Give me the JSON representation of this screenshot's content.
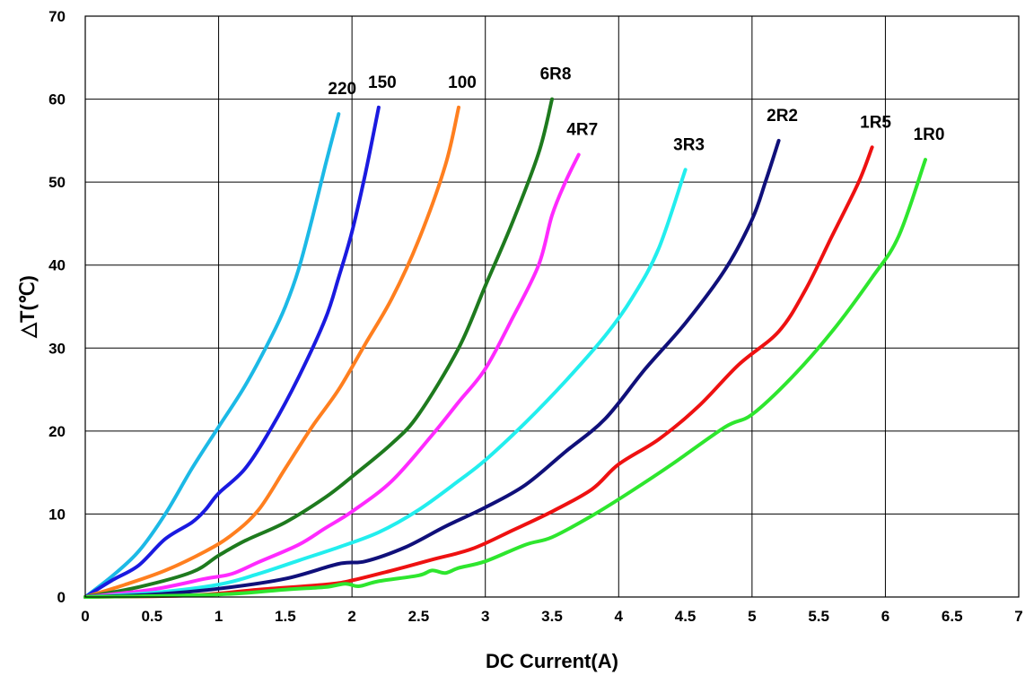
{
  "chart_data": {
    "type": "line",
    "title": "",
    "xlabel": "DC Current(A)",
    "ylabel": "△T(℃)",
    "xlim": [
      0,
      7
    ],
    "ylim": [
      0,
      70
    ],
    "x_ticks": [
      "0",
      "0.5",
      "1",
      "1.5",
      "2",
      "2.5",
      "3",
      "3.5",
      "4",
      "4.5",
      "5",
      "5.5",
      "6",
      "6.5",
      "7"
    ],
    "y_ticks": [
      "0",
      "10",
      "20",
      "30",
      "40",
      "50",
      "60",
      "70"
    ],
    "grid": true,
    "legend": "inline labels at curve ends",
    "series": [
      {
        "name": "220",
        "color": "#1cb9e6",
        "points": [
          [
            0,
            0
          ],
          [
            0.2,
            2.5
          ],
          [
            0.4,
            5.5
          ],
          [
            0.6,
            10
          ],
          [
            0.8,
            15.5
          ],
          [
            1,
            20.5
          ],
          [
            1.2,
            25.5
          ],
          [
            1.4,
            31.5
          ],
          [
            1.5,
            35
          ],
          [
            1.6,
            39.5
          ],
          [
            1.7,
            45.5
          ],
          [
            1.8,
            52
          ],
          [
            1.9,
            58.2
          ]
        ]
      },
      {
        "name": "150",
        "color": "#1a1ae0",
        "points": [
          [
            0,
            0
          ],
          [
            0.2,
            2
          ],
          [
            0.4,
            3.8
          ],
          [
            0.6,
            7
          ],
          [
            0.8,
            9
          ],
          [
            0.9,
            10.5
          ],
          [
            1,
            12.5
          ],
          [
            1.2,
            15.5
          ],
          [
            1.4,
            20.5
          ],
          [
            1.6,
            26.5
          ],
          [
            1.8,
            33.5
          ],
          [
            1.9,
            38.5
          ],
          [
            2,
            44
          ],
          [
            2.1,
            51
          ],
          [
            2.2,
            59
          ]
        ]
      },
      {
        "name": "100",
        "color": "#ff7f1f",
        "points": [
          [
            0,
            0
          ],
          [
            0.3,
            1.5
          ],
          [
            0.6,
            3.2
          ],
          [
            0.9,
            5.5
          ],
          [
            1.1,
            7.5
          ],
          [
            1.3,
            10.5
          ],
          [
            1.5,
            15.5
          ],
          [
            1.7,
            20.5
          ],
          [
            1.9,
            25
          ],
          [
            2.1,
            30.5
          ],
          [
            2.3,
            36
          ],
          [
            2.5,
            43
          ],
          [
            2.7,
            52
          ],
          [
            2.8,
            59
          ]
        ]
      },
      {
        "name": "6R8",
        "color": "#1e7a1e",
        "points": [
          [
            0,
            0
          ],
          [
            0.4,
            1.2
          ],
          [
            0.8,
            3
          ],
          [
            1.0,
            5
          ],
          [
            1.2,
            6.8
          ],
          [
            1.5,
            9
          ],
          [
            1.8,
            12
          ],
          [
            2.0,
            14.5
          ],
          [
            2.3,
            18.5
          ],
          [
            2.5,
            22
          ],
          [
            2.8,
            30
          ],
          [
            3.0,
            37.5
          ],
          [
            3.2,
            45
          ],
          [
            3.4,
            53.5
          ],
          [
            3.5,
            60
          ]
        ]
      },
      {
        "name": "4R7",
        "color": "#ff2aff",
        "points": [
          [
            0,
            0
          ],
          [
            0.5,
            0.9
          ],
          [
            0.9,
            2.2
          ],
          [
            1.1,
            2.8
          ],
          [
            1.3,
            4.2
          ],
          [
            1.6,
            6.3
          ],
          [
            1.8,
            8.3
          ],
          [
            2.0,
            10.3
          ],
          [
            2.3,
            14
          ],
          [
            2.6,
            19.5
          ],
          [
            2.8,
            23.5
          ],
          [
            3.0,
            27.5
          ],
          [
            3.2,
            33.5
          ],
          [
            3.4,
            40
          ],
          [
            3.5,
            46
          ],
          [
            3.6,
            50
          ],
          [
            3.7,
            53.3
          ]
        ]
      },
      {
        "name": "3R3",
        "color": "#22eeee",
        "points": [
          [
            0,
            0
          ],
          [
            0.5,
            0.5
          ],
          [
            1.0,
            1.5
          ],
          [
            1.3,
            2.8
          ],
          [
            1.6,
            4.4
          ],
          [
            1.9,
            6
          ],
          [
            2.2,
            7.8
          ],
          [
            2.5,
            10.5
          ],
          [
            2.8,
            14
          ],
          [
            3.0,
            16.5
          ],
          [
            3.3,
            21
          ],
          [
            3.6,
            26
          ],
          [
            3.9,
            31.5
          ],
          [
            4.1,
            36
          ],
          [
            4.3,
            42
          ],
          [
            4.5,
            51.5
          ]
        ]
      },
      {
        "name": "2R2",
        "color": "#10107a",
        "points": [
          [
            0,
            0
          ],
          [
            0.5,
            0.3
          ],
          [
            1.0,
            1
          ],
          [
            1.5,
            2.2
          ],
          [
            1.9,
            4
          ],
          [
            2.1,
            4.3
          ],
          [
            2.4,
            6
          ],
          [
            2.7,
            8.5
          ],
          [
            3.0,
            10.8
          ],
          [
            3.3,
            13.5
          ],
          [
            3.6,
            17.5
          ],
          [
            3.9,
            21.5
          ],
          [
            4.2,
            27.5
          ],
          [
            4.5,
            33
          ],
          [
            4.8,
            39.5
          ],
          [
            5.0,
            45.5
          ],
          [
            5.1,
            50
          ],
          [
            5.2,
            55
          ]
        ]
      },
      {
        "name": "1R5",
        "color": "#ee1111",
        "points": [
          [
            0,
            0
          ],
          [
            0.8,
            0.2
          ],
          [
            1.3,
            0.9
          ],
          [
            1.8,
            1.5
          ],
          [
            2.0,
            2
          ],
          [
            2.3,
            3.2
          ],
          [
            2.6,
            4.5
          ],
          [
            2.9,
            5.8
          ],
          [
            3.2,
            8
          ],
          [
            3.5,
            10.3
          ],
          [
            3.8,
            13
          ],
          [
            4.0,
            16
          ],
          [
            4.3,
            19
          ],
          [
            4.6,
            23
          ],
          [
            4.9,
            28
          ],
          [
            5.2,
            32
          ],
          [
            5.4,
            37
          ],
          [
            5.6,
            43.5
          ],
          [
            5.8,
            50
          ],
          [
            5.9,
            54.2
          ]
        ]
      },
      {
        "name": "1R0",
        "color": "#2ee62e",
        "points": [
          [
            0,
            0
          ],
          [
            1.0,
            0.3
          ],
          [
            1.5,
            0.9
          ],
          [
            1.8,
            1.2
          ],
          [
            1.95,
            1.6
          ],
          [
            2.05,
            1.3
          ],
          [
            2.2,
            1.9
          ],
          [
            2.5,
            2.6
          ],
          [
            2.6,
            3.2
          ],
          [
            2.7,
            2.9
          ],
          [
            2.8,
            3.5
          ],
          [
            3.0,
            4.3
          ],
          [
            3.3,
            6.3
          ],
          [
            3.5,
            7.2
          ],
          [
            3.8,
            9.8
          ],
          [
            4.1,
            12.8
          ],
          [
            4.4,
            16
          ],
          [
            4.8,
            20.5
          ],
          [
            5.0,
            22
          ],
          [
            5.3,
            26.5
          ],
          [
            5.6,
            32
          ],
          [
            5.9,
            38.5
          ],
          [
            6.1,
            43.5
          ],
          [
            6.3,
            52.7
          ]
        ]
      }
    ]
  }
}
